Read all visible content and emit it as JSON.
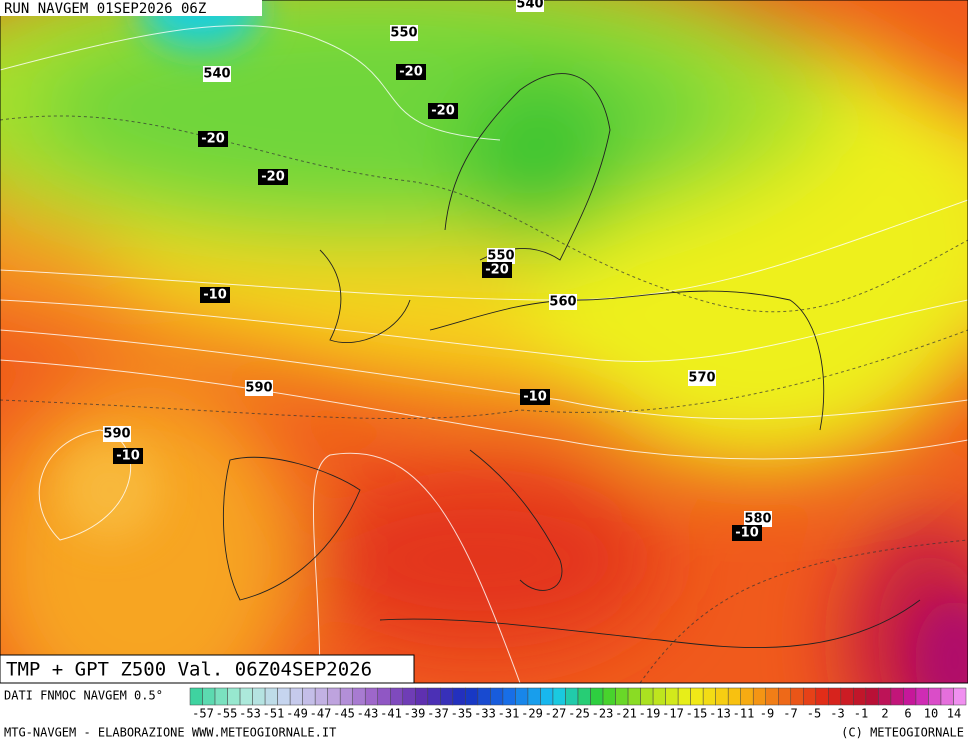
{
  "header": {
    "run": "RUN NAVGEM 01SEP2026 06Z"
  },
  "map": {
    "title": "TMP + GPT Z500 Val. 06Z04SEP2026",
    "height_labels": [
      "540",
      "550",
      "540",
      "550",
      "560",
      "570",
      "590",
      "590",
      "580"
    ],
    "temperature_labels": [
      "-20",
      "-20",
      "-20",
      "-20",
      "-20",
      "-10",
      "-10",
      "-10",
      "-10"
    ]
  },
  "legend": {
    "source": "DATI FNMOC NAVGEM 0.5°",
    "labels": [
      -57,
      -55,
      -53,
      -51,
      -49,
      -47,
      -45,
      -43,
      -41,
      -39,
      -37,
      -35,
      -33,
      -31,
      -29,
      -27,
      -25,
      -23,
      -21,
      -19,
      -17,
      -15,
      -13,
      -11,
      -9,
      -7,
      -5,
      -3,
      -1,
      2,
      6,
      10,
      14
    ]
  },
  "footer": {
    "left": "MTG-NAVGEM - ELABORAZIONE WWW.METEOGIORNALE.IT",
    "right": "(C) METEOGIORNALE"
  }
}
